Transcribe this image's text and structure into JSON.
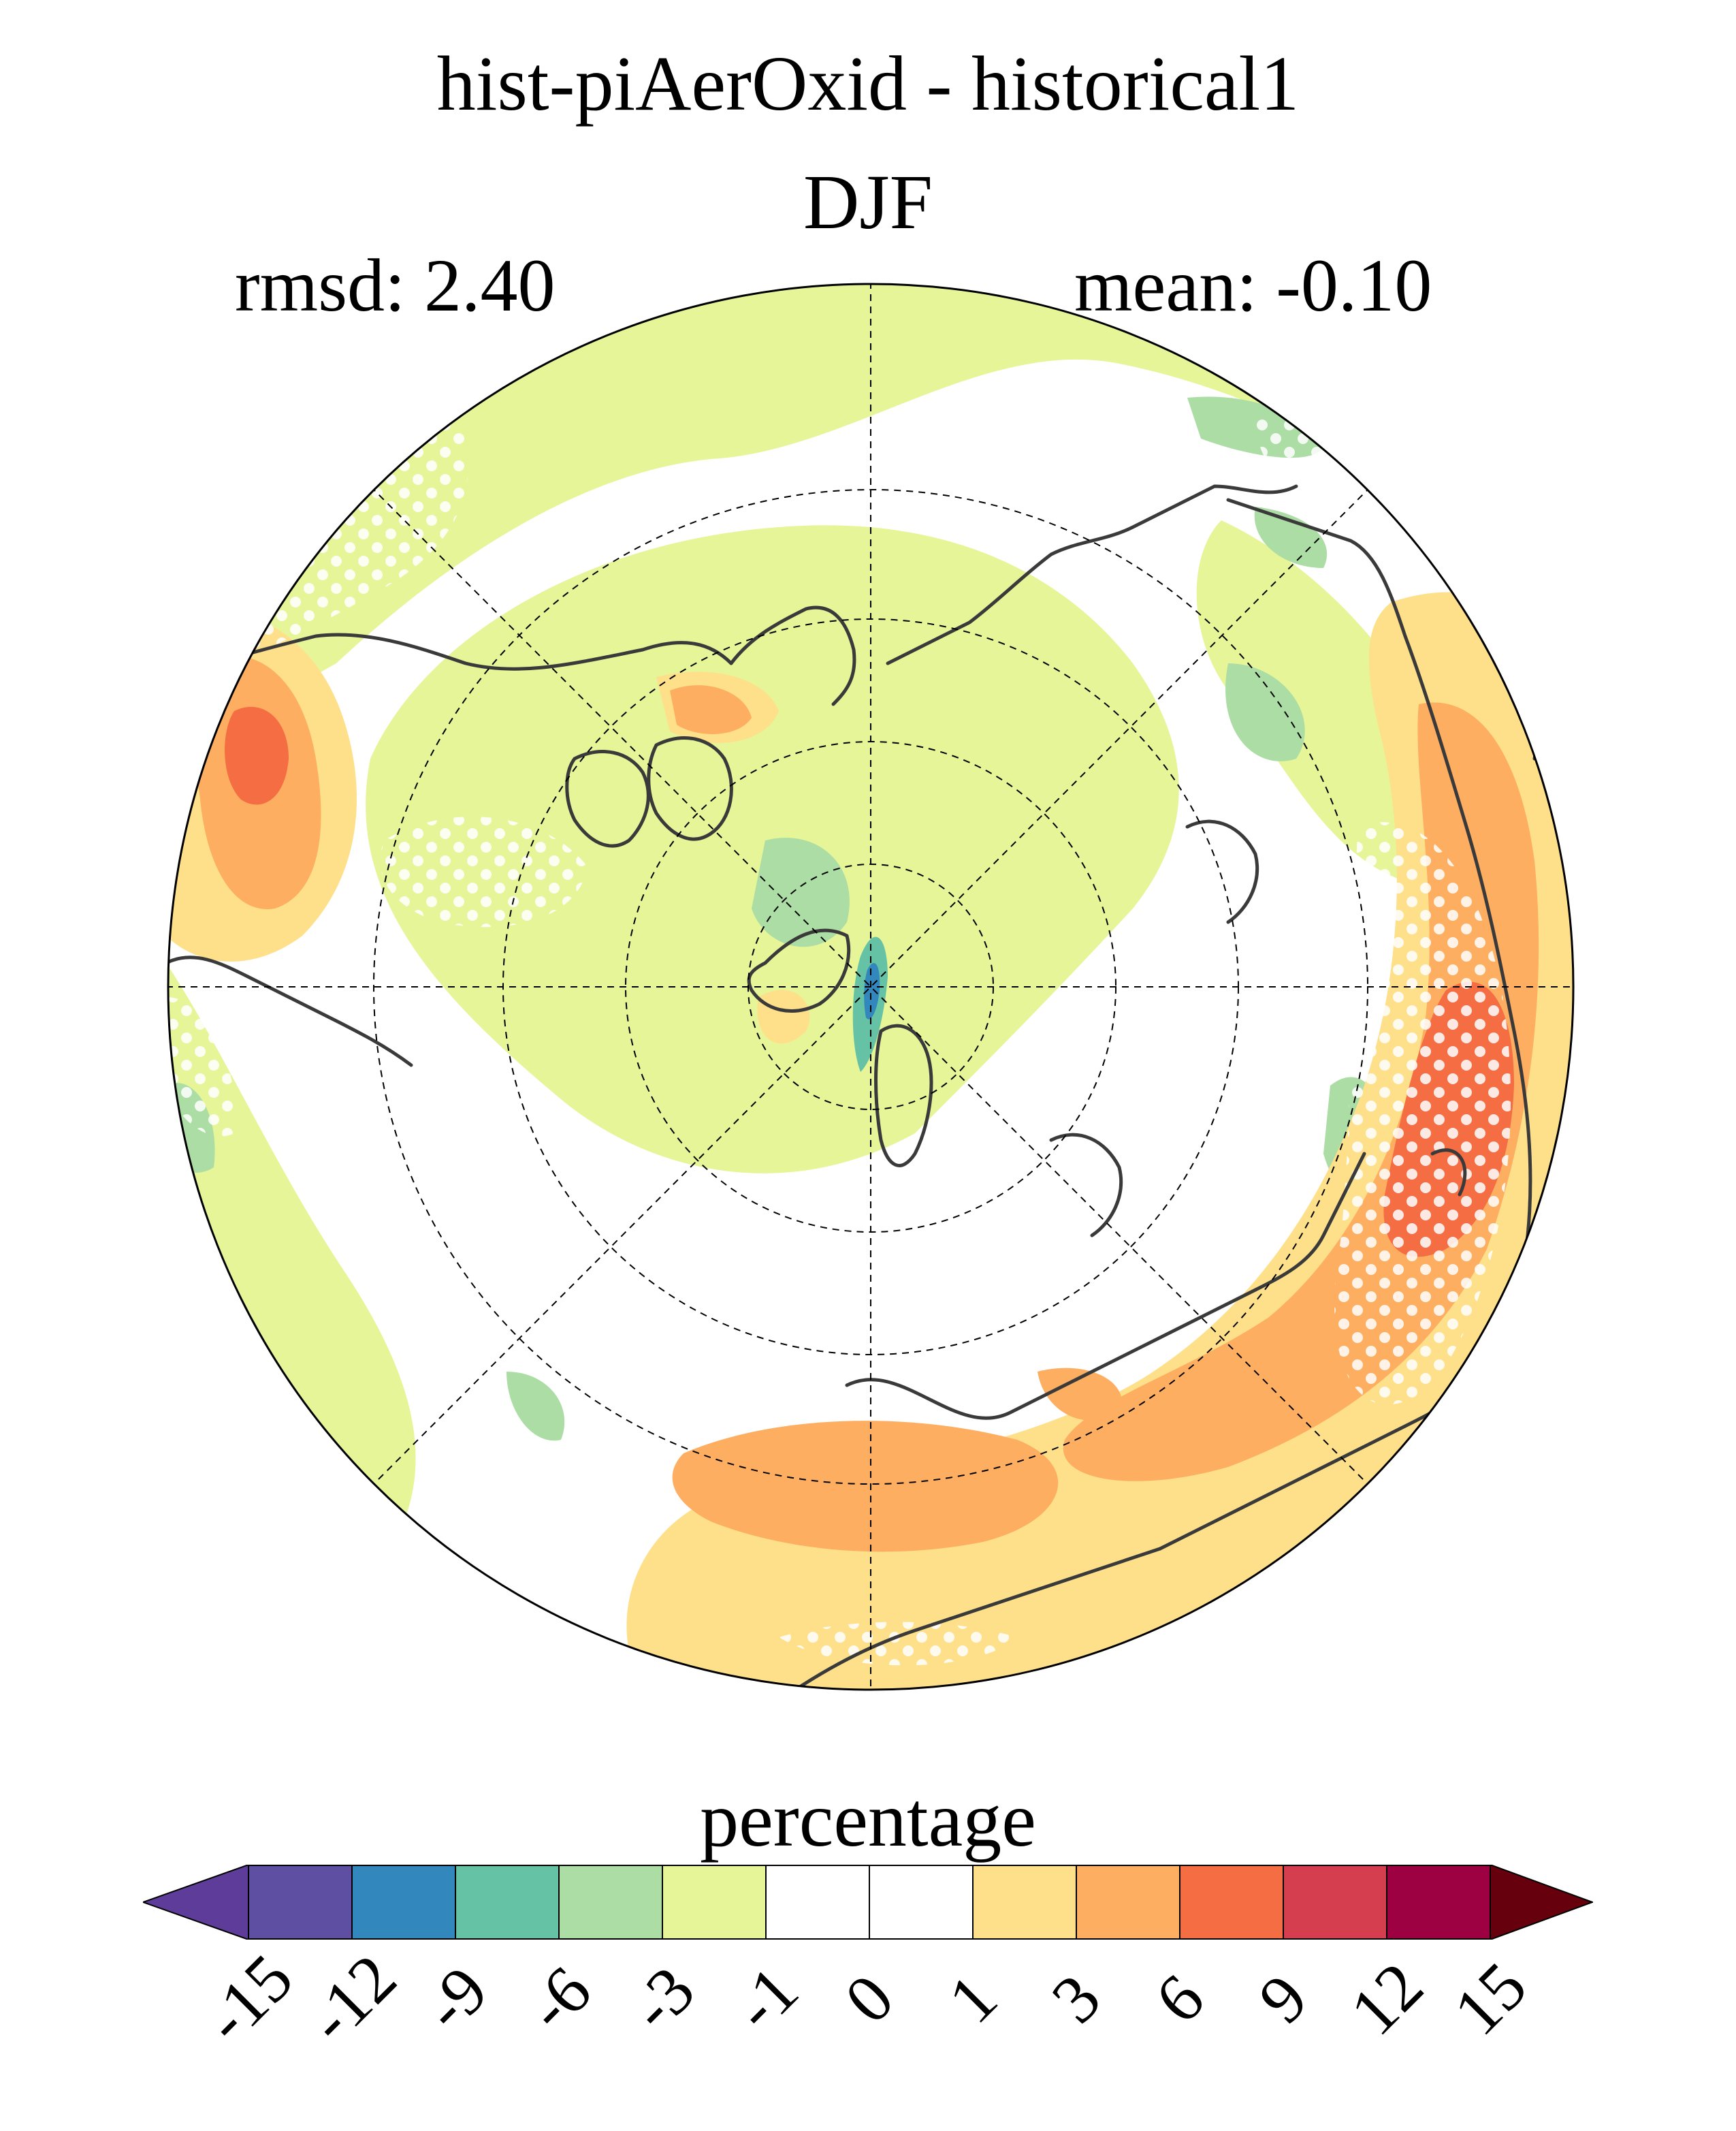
{
  "header": {
    "title": "hist-piAerOxid - historical1",
    "season": "DJF",
    "rmsd": "rmsd: 2.40",
    "mean": "mean: -0.10"
  },
  "colorbar": {
    "label": "percentage",
    "ticks": [
      "-15",
      "-12",
      "-9",
      "-6",
      "-3",
      "-1",
      "0",
      "1",
      "3",
      "6",
      "9",
      "12",
      "15"
    ],
    "low_extend_color": "#5e3c99",
    "high_extend_color": "#67000d",
    "colors": [
      "#5e4fa2",
      "#3288bd",
      "#66c2a5",
      "#abdda4",
      "#e6f598",
      "#ffffff",
      "#ffffff",
      "#fee08b",
      "#fdae61",
      "#f46d43",
      "#d53e4f",
      "#9e0142"
    ]
  },
  "map": {
    "projection": "north-polar-stereographic",
    "stippling": "white dots mark areas not statistically significant",
    "coastline_color": "#3a3a3a",
    "gridline_style": "dashed"
  }
}
